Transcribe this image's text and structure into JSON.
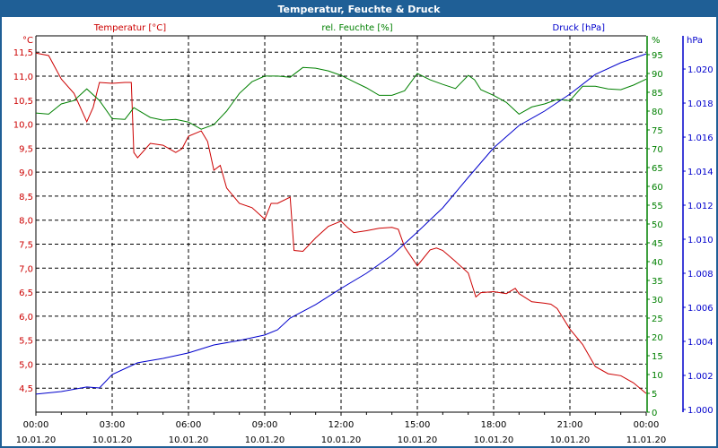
{
  "window": {
    "title": "Temperatur, Feuchte & Druck"
  },
  "chart_data": {
    "type": "line",
    "title": "Temperatur, Feuchte & Druck",
    "colors": {
      "temperature": "#cc0000",
      "humidity": "#008000",
      "pressure": "#0000cc",
      "frame": "#1f5f96"
    },
    "axes": {
      "left": {
        "label": "Temperatur [°C]",
        "unit": "°C",
        "range": [
          4.0,
          11.84
        ],
        "ticks": [
          "11,5",
          "11,0",
          "10,5",
          "10,0",
          "9,5",
          "9,0",
          "8,5",
          "8,0",
          "7,5",
          "7,0",
          "6,5",
          "6,0",
          "5,5",
          "5,0",
          "4,5"
        ],
        "tick_values": [
          11.5,
          11.0,
          10.5,
          10.0,
          9.5,
          9.0,
          8.5,
          8.0,
          7.5,
          7.0,
          6.5,
          6.0,
          5.5,
          5.0,
          4.5
        ]
      },
      "right1": {
        "label": "rel. Feuchte [%]",
        "unit": "%",
        "range": [
          0,
          100
        ],
        "ticks": [
          "95",
          "90",
          "85",
          "80",
          "75",
          "70",
          "65",
          "60",
          "55",
          "50",
          "45",
          "40",
          "35",
          "30",
          "25",
          "20",
          "15",
          "10",
          "5",
          "0"
        ],
        "tick_values": [
          95,
          90,
          85,
          80,
          75,
          70,
          65,
          60,
          55,
          50,
          45,
          40,
          35,
          30,
          25,
          20,
          15,
          10,
          5,
          0
        ]
      },
      "right2": {
        "label": "Druck [hPa]",
        "unit": "hPa",
        "range": [
          0.99984,
          1.02195
        ],
        "ticks": [
          "1.020",
          "1.018",
          "1.016",
          "1.014",
          "1.012",
          "1.010",
          "1.008",
          "1.006",
          "1.004",
          "1.002",
          "1.000"
        ],
        "tick_values": [
          1.02,
          1.018,
          1.016,
          1.014,
          1.012,
          1.01,
          1.008,
          1.006,
          1.004,
          1.002,
          1.0
        ]
      },
      "x": {
        "range_hours": [
          0,
          24
        ],
        "ticks": [
          {
            "time": "00:00",
            "date": "10.01.20",
            "hour": 0
          },
          {
            "time": "03:00",
            "date": "10.01.20",
            "hour": 3
          },
          {
            "time": "06:00",
            "date": "10.01.20",
            "hour": 6
          },
          {
            "time": "09:00",
            "date": "10.01.20",
            "hour": 9
          },
          {
            "time": "12:00",
            "date": "10.01.20",
            "hour": 12
          },
          {
            "time": "15:00",
            "date": "10.01.20",
            "hour": 15
          },
          {
            "time": "18:00",
            "date": "10.01.20",
            "hour": 18
          },
          {
            "time": "21:00",
            "date": "10.01.20",
            "hour": 21
          },
          {
            "time": "00:00",
            "date": "11.01.20",
            "hour": 24
          }
        ]
      }
    },
    "grid": true,
    "series": [
      {
        "name": "Temperatur [°C]",
        "axis": "left",
        "color_key": "temperature",
        "x": [
          0,
          0.5,
          1,
          1.5,
          2,
          2.25,
          2.5,
          3,
          3.5,
          3.75,
          3.85,
          4,
          4.5,
          5,
          5.5,
          5.75,
          6,
          6.5,
          6.75,
          7,
          7.25,
          7.5,
          8,
          8.5,
          9,
          9.25,
          9.5,
          10,
          10.15,
          10.5,
          11,
          11.5,
          12,
          12.25,
          12.5,
          13,
          13.5,
          14,
          14.25,
          14.5,
          15,
          15.5,
          15.75,
          16,
          16.5,
          17,
          17.3,
          17.5,
          18,
          18.5,
          18.85,
          19,
          19.5,
          20,
          20.25,
          20.5,
          21,
          21.5,
          22,
          22.5,
          23,
          23.5,
          24
        ],
        "y": [
          11.48,
          11.43,
          10.94,
          10.64,
          10.05,
          10.35,
          10.87,
          10.85,
          10.87,
          10.87,
          9.41,
          9.3,
          9.6,
          9.56,
          9.41,
          9.49,
          9.75,
          9.86,
          9.64,
          9.04,
          9.14,
          8.67,
          8.35,
          8.26,
          8.02,
          8.35,
          8.35,
          8.48,
          7.37,
          7.35,
          7.63,
          7.87,
          7.98,
          7.85,
          7.74,
          7.78,
          7.83,
          7.85,
          7.81,
          7.44,
          7.05,
          7.38,
          7.42,
          7.37,
          7.14,
          6.9,
          6.4,
          6.49,
          6.51,
          6.47,
          6.58,
          6.47,
          6.3,
          6.27,
          6.25,
          6.16,
          5.73,
          5.41,
          4.95,
          4.8,
          4.76,
          4.61,
          4.39
        ]
      },
      {
        "name": "rel. Feuchte [%]",
        "axis": "right1",
        "color_key": "humidity",
        "x": [
          0,
          0.5,
          1,
          1.5,
          2,
          2.5,
          3,
          3.5,
          3.85,
          4.5,
          5,
          5.5,
          6,
          6.5,
          7,
          7.5,
          8,
          8.5,
          9,
          9.5,
          10,
          10.5,
          11,
          11.5,
          12,
          12.5,
          13,
          13.5,
          14,
          14.5,
          15,
          15.5,
          16,
          16.5,
          17,
          17.25,
          17.5,
          18,
          18.5,
          19,
          19.5,
          20,
          20.5,
          21,
          21.5,
          22,
          22.5,
          23,
          23.5,
          24
        ],
        "y": [
          79.5,
          79.2,
          81.9,
          82.8,
          85.9,
          82.8,
          78.0,
          77.8,
          80.9,
          78.3,
          77.6,
          77.8,
          77.1,
          75.2,
          76.4,
          80.0,
          84.7,
          87.8,
          89.3,
          89.3,
          89.0,
          91.6,
          91.4,
          90.7,
          89.5,
          87.8,
          86.2,
          84.2,
          84.2,
          85.4,
          90.0,
          88.3,
          87.1,
          86.0,
          89.5,
          88.3,
          85.7,
          84.2,
          82.3,
          79.2,
          81.1,
          81.9,
          83.1,
          82.8,
          86.6,
          86.6,
          85.9,
          85.7,
          86.9,
          88.5
        ]
      },
      {
        "name": "Druck [hPa]",
        "axis": "right2",
        "color_key": "pressure",
        "x": [
          0,
          1,
          2,
          2.5,
          3,
          4,
          5,
          6,
          7,
          8,
          9,
          9.5,
          10,
          11,
          12,
          13,
          14,
          15,
          16,
          17,
          18,
          19,
          20,
          21,
          22,
          23,
          24
        ],
        "y": [
          1.0009,
          1.00105,
          1.00132,
          1.00126,
          1.00205,
          1.00274,
          1.003,
          1.00332,
          1.00379,
          1.00405,
          1.00437,
          1.00468,
          1.00537,
          1.00616,
          1.00711,
          1.008,
          1.00905,
          1.01042,
          1.01184,
          1.01363,
          1.01537,
          1.01668,
          1.01753,
          1.01853,
          1.01968,
          1.02037,
          1.02089
        ]
      }
    ]
  }
}
